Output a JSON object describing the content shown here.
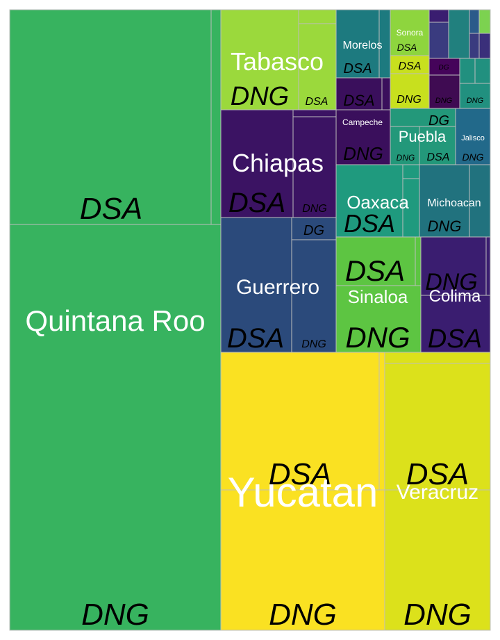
{
  "chart_data": {
    "type": "treemap",
    "states": [
      {
        "name": "Quintana Roo",
        "color": "#37B35F",
        "subgroups": [
          {
            "label": "DSA",
            "color": "#37B35F"
          },
          {
            "label": "DNG",
            "color": "#37B35F"
          }
        ]
      },
      {
        "name": "Yucatan",
        "color": "#FAE122",
        "subgroups": [
          {
            "label": "DSA",
            "color": "#FAE122"
          },
          {
            "label": "DNG",
            "color": "#FAE122"
          }
        ]
      },
      {
        "name": "Veracruz",
        "color": "#DCE11B",
        "subgroups": [
          {
            "label": "DSA",
            "color": "#DCE11B"
          },
          {
            "label": "DNG",
            "color": "#DCE11B"
          }
        ]
      },
      {
        "name": "Tabasco",
        "color": "#9BD93C",
        "subgroups": [
          {
            "label": "DNG",
            "color": "#9BD93C"
          },
          {
            "label": "DSA",
            "color": "#9BD93C"
          }
        ]
      },
      {
        "name": "Chiapas",
        "color": "#3B1363",
        "subgroups": [
          {
            "label": "DSA",
            "color": "#3B1363"
          },
          {
            "label": "DNG",
            "color": "#3B1363"
          }
        ]
      },
      {
        "name": "Guerrero",
        "color": "#2B4A7B",
        "subgroups": [
          {
            "label": "DSA",
            "color": "#2B4A7B"
          },
          {
            "label": "DG",
            "color": "#2B4A7B"
          },
          {
            "label": "DNG",
            "color": "#2B4A7B"
          }
        ]
      },
      {
        "name": "Sinaloa",
        "color": "#5DC542",
        "subgroups": [
          {
            "label": "DSA",
            "color": "#5DC542"
          },
          {
            "label": "DNG",
            "color": "#5DC542"
          }
        ]
      },
      {
        "name": "Colima",
        "color": "#3A1D70",
        "subgroups": [
          {
            "label": "DNG",
            "color": "#3A1D70"
          },
          {
            "label": "DSA",
            "color": "#3A1D70"
          }
        ]
      },
      {
        "name": "Oaxaca",
        "color": "#1F9A7E",
        "subgroups": [
          {
            "label": "DSA",
            "color": "#1F9A7E"
          }
        ]
      },
      {
        "name": "Michoacan",
        "color": "#21727E",
        "subgroups": [
          {
            "label": "DNG",
            "color": "#21727E"
          }
        ]
      },
      {
        "name": "Morelos",
        "color": "#1D7A7F",
        "subgroups": [
          {
            "label": "DSA",
            "color": "#1D7A7F"
          }
        ]
      },
      {
        "name": "Campeche",
        "color": "#3A0F5C",
        "subgroups": [
          {
            "label": "DSA",
            "color": "#3A0F5C"
          },
          {
            "label": "DNG",
            "color": "#3A0F5C"
          }
        ]
      },
      {
        "name": "Sonora",
        "color": "#8ED53E",
        "subgroups": [
          {
            "label": "DSA",
            "color": "#8ED53E"
          },
          {
            "label": "DSA",
            "color": "#C8E01E"
          },
          {
            "label": "DNG",
            "color": "#C8E01E"
          }
        ]
      },
      {
        "name": "Puebla",
        "color": "#23987A",
        "subgroups": [
          {
            "label": "DG",
            "color": "#23987A"
          },
          {
            "label": "DNG",
            "color": "#23987A"
          },
          {
            "label": "DSA",
            "color": "#23987A"
          }
        ]
      },
      {
        "name": "Jalisco",
        "color": "#22698A",
        "subgroups": [
          {
            "label": "DNG",
            "color": "#22698A"
          }
        ]
      },
      {
        "name": "",
        "color": "#3F0B52",
        "subgroups": [
          {
            "label": "DG",
            "color": "#45045A"
          },
          {
            "label": "DNG",
            "color": "#3F0B52"
          }
        ]
      },
      {
        "name": "",
        "color": "#21907F",
        "subgroups": [
          {
            "label": "DNG",
            "color": "#21907F"
          }
        ]
      }
    ]
  }
}
